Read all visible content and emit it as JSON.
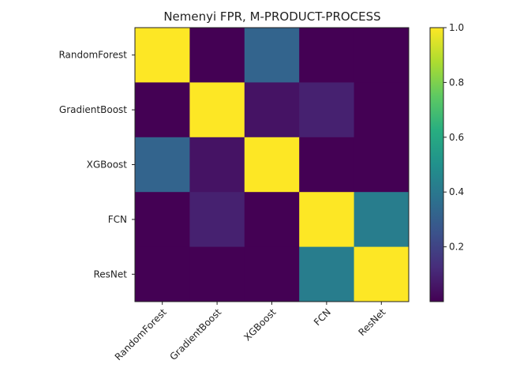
{
  "chart_data": {
    "type": "heatmap",
    "title": "Nemenyi FPR, M-PRODUCT-PROCESS",
    "x_categories": [
      "RandomForest",
      "GradientBoost",
      "XGBoost",
      "FCN",
      "ResNet"
    ],
    "y_categories": [
      "RandomForest",
      "GradientBoost",
      "XGBoost",
      "FCN",
      "ResNet"
    ],
    "values": [
      [
        1.0,
        0.001,
        0.32,
        0.001,
        0.001
      ],
      [
        0.001,
        1.0,
        0.05,
        0.09,
        0.001
      ],
      [
        0.32,
        0.05,
        1.0,
        0.001,
        0.001
      ],
      [
        0.001,
        0.09,
        0.001,
        1.0,
        0.42
      ],
      [
        0.001,
        0.001,
        0.001,
        0.42,
        1.0
      ]
    ],
    "colormap": "viridis",
    "colorbar": {
      "range": [
        0.0,
        1.0
      ],
      "ticks": [
        0.2,
        0.4,
        0.6,
        0.8,
        1.0
      ],
      "tick_labels": [
        "0.2",
        "0.4",
        "0.6",
        "0.8",
        "1.0"
      ]
    },
    "grid": false,
    "legend": "colorbar-right"
  }
}
